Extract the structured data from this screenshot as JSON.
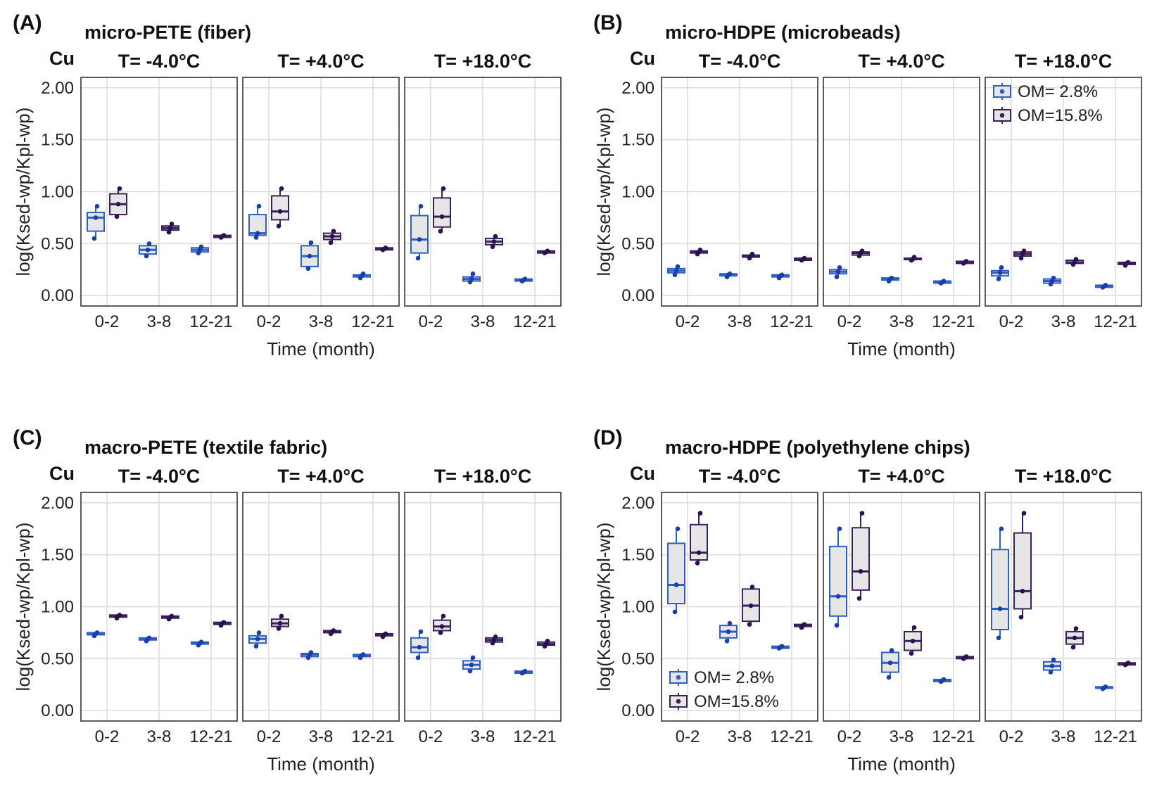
{
  "figure": {
    "y_axis_label": "log(Ksed-wp/Kpl-wp)",
    "x_axis_label": "Time (month)",
    "element": "Cu"
  },
  "legend": {
    "entries": [
      {
        "label": "OM=  2.8%",
        "color": "#2d5fc4"
      },
      {
        "label": "OM=15.8%",
        "color": "#3d1f5c"
      }
    ]
  },
  "colors": {
    "om_low": "#2d5fc4",
    "om_low_point": "#1b3fa8",
    "om_high": "#3d1f5c",
    "om_high_point": "#2a1250",
    "box_fill": "#e6e6e6",
    "grid": "#d9d9d9"
  },
  "chart_data": [
    {
      "id": "A",
      "letter": "(A)",
      "title": "micro-PETE  (fiber)",
      "type": "box",
      "ylim": [
        -0.1,
        2.1
      ],
      "yticks": [
        "0.00",
        "0.50",
        "1.00",
        "1.50",
        "2.00"
      ],
      "categories": [
        "0-2",
        "3-8",
        "12-21"
      ],
      "show_legend": false,
      "facets": [
        {
          "title": "T= -4.0°C",
          "series": [
            {
              "name": "OM= 2.8%",
              "boxes": [
                [
                  0.55,
                  0.62,
                  0.75,
                  0.8,
                  0.86
                ],
                [
                  0.38,
                  0.4,
                  0.44,
                  0.48,
                  0.5
                ],
                [
                  0.41,
                  0.42,
                  0.44,
                  0.46,
                  0.47
                ]
              ]
            },
            {
              "name": "OM=15.8%",
              "boxes": [
                [
                  0.76,
                  0.78,
                  0.88,
                  0.98,
                  1.03
                ],
                [
                  0.61,
                  0.63,
                  0.65,
                  0.67,
                  0.69
                ],
                [
                  0.56,
                  0.56,
                  0.57,
                  0.58,
                  0.58
                ]
              ]
            }
          ]
        },
        {
          "title": "T= +4.0°C",
          "series": [
            {
              "name": "OM= 2.8%",
              "boxes": [
                [
                  0.56,
                  0.58,
                  0.6,
                  0.78,
                  0.86
                ],
                [
                  0.26,
                  0.28,
                  0.38,
                  0.48,
                  0.51
                ],
                [
                  0.17,
                  0.18,
                  0.19,
                  0.2,
                  0.21
                ]
              ]
            },
            {
              "name": "OM=15.8%",
              "boxes": [
                [
                  0.67,
                  0.73,
                  0.81,
                  0.96,
                  1.03
                ],
                [
                  0.51,
                  0.54,
                  0.57,
                  0.6,
                  0.62
                ],
                [
                  0.44,
                  0.44,
                  0.45,
                  0.46,
                  0.46
                ]
              ]
            }
          ]
        },
        {
          "title": "T= +18.0°C",
          "series": [
            {
              "name": "OM= 2.8%",
              "boxes": [
                [
                  0.36,
                  0.41,
                  0.54,
                  0.77,
                  0.86
                ],
                [
                  0.13,
                  0.14,
                  0.16,
                  0.18,
                  0.21
                ],
                [
                  0.14,
                  0.14,
                  0.15,
                  0.16,
                  0.16
                ]
              ]
            },
            {
              "name": "OM=15.8%",
              "boxes": [
                [
                  0.62,
                  0.66,
                  0.76,
                  0.94,
                  1.03
                ],
                [
                  0.47,
                  0.49,
                  0.52,
                  0.55,
                  0.57
                ],
                [
                  0.41,
                  0.41,
                  0.42,
                  0.43,
                  0.43
                ]
              ]
            }
          ]
        }
      ]
    },
    {
      "id": "B",
      "letter": "(B)",
      "title": "micro-HDPE  (microbeads)",
      "type": "box",
      "ylim": [
        -0.1,
        2.1
      ],
      "yticks": [
        "0.00",
        "0.50",
        "1.00",
        "1.50",
        "2.00"
      ],
      "categories": [
        "0-2",
        "3-8",
        "12-21"
      ],
      "show_legend": true,
      "legend_position": "top-right",
      "facets": [
        {
          "title": "T= -4.0°C",
          "series": [
            {
              "name": "OM= 2.8%",
              "boxes": [
                [
                  0.2,
                  0.22,
                  0.24,
                  0.26,
                  0.28
                ],
                [
                  0.18,
                  0.19,
                  0.2,
                  0.21,
                  0.21
                ],
                [
                  0.17,
                  0.18,
                  0.19,
                  0.2,
                  0.2
                ]
              ]
            },
            {
              "name": "OM=15.8%",
              "boxes": [
                [
                  0.4,
                  0.41,
                  0.42,
                  0.43,
                  0.44
                ],
                [
                  0.36,
                  0.37,
                  0.38,
                  0.39,
                  0.4
                ],
                [
                  0.34,
                  0.34,
                  0.35,
                  0.36,
                  0.36
                ]
              ]
            }
          ]
        },
        {
          "title": "T= +4.0°C",
          "series": [
            {
              "name": "OM= 2.8%",
              "boxes": [
                [
                  0.18,
                  0.21,
                  0.23,
                  0.25,
                  0.27
                ],
                [
                  0.14,
                  0.15,
                  0.16,
                  0.17,
                  0.17
                ],
                [
                  0.12,
                  0.12,
                  0.13,
                  0.14,
                  0.14
                ]
              ]
            },
            {
              "name": "OM=15.8%",
              "boxes": [
                [
                  0.38,
                  0.39,
                  0.41,
                  0.42,
                  0.43
                ],
                [
                  0.34,
                  0.35,
                  0.35,
                  0.36,
                  0.37
                ],
                [
                  0.31,
                  0.31,
                  0.32,
                  0.33,
                  0.33
                ]
              ]
            }
          ]
        },
        {
          "title": "T= +18.0°C",
          "series": [
            {
              "name": "OM= 2.8%",
              "boxes": [
                [
                  0.16,
                  0.19,
                  0.22,
                  0.24,
                  0.27
                ],
                [
                  0.11,
                  0.12,
                  0.14,
                  0.16,
                  0.17
                ],
                [
                  0.08,
                  0.08,
                  0.09,
                  0.1,
                  0.1
                ]
              ]
            },
            {
              "name": "OM=15.8%",
              "boxes": [
                [
                  0.36,
                  0.38,
                  0.4,
                  0.42,
                  0.43
                ],
                [
                  0.3,
                  0.31,
                  0.32,
                  0.34,
                  0.35
                ],
                [
                  0.29,
                  0.3,
                  0.31,
                  0.32,
                  0.32
                ]
              ]
            }
          ]
        }
      ]
    },
    {
      "id": "C",
      "letter": "(C)",
      "title": "macro-PETE  (textile fabric)",
      "type": "box",
      "ylim": [
        -0.1,
        2.1
      ],
      "yticks": [
        "0.00",
        "0.50",
        "1.00",
        "1.50",
        "2.00"
      ],
      "categories": [
        "0-2",
        "3-8",
        "12-21"
      ],
      "show_legend": false,
      "facets": [
        {
          "title": "T= -4.0°C",
          "series": [
            {
              "name": "OM= 2.8%",
              "boxes": [
                [
                  0.72,
                  0.73,
                  0.74,
                  0.75,
                  0.75
                ],
                [
                  0.67,
                  0.68,
                  0.69,
                  0.7,
                  0.7
                ],
                [
                  0.63,
                  0.64,
                  0.65,
                  0.66,
                  0.66
                ]
              ]
            },
            {
              "name": "OM=15.8%",
              "boxes": [
                [
                  0.89,
                  0.9,
                  0.91,
                  0.92,
                  0.92
                ],
                [
                  0.88,
                  0.89,
                  0.9,
                  0.91,
                  0.91
                ],
                [
                  0.82,
                  0.83,
                  0.84,
                  0.85,
                  0.85
                ]
              ]
            }
          ]
        },
        {
          "title": "T= +4.0°C",
          "series": [
            {
              "name": "OM= 2.8%",
              "boxes": [
                [
                  0.62,
                  0.65,
                  0.69,
                  0.72,
                  0.75
                ],
                [
                  0.51,
                  0.52,
                  0.54,
                  0.55,
                  0.56
                ],
                [
                  0.51,
                  0.52,
                  0.53,
                  0.54,
                  0.54
                ]
              ]
            },
            {
              "name": "OM=15.8%",
              "boxes": [
                [
                  0.79,
                  0.81,
                  0.84,
                  0.88,
                  0.91
                ],
                [
                  0.74,
                  0.75,
                  0.76,
                  0.77,
                  0.77
                ],
                [
                  0.71,
                  0.72,
                  0.73,
                  0.74,
                  0.74
                ]
              ]
            }
          ]
        },
        {
          "title": "T= +18.0°C",
          "series": [
            {
              "name": "OM= 2.8%",
              "boxes": [
                [
                  0.51,
                  0.56,
                  0.61,
                  0.7,
                  0.76
                ],
                [
                  0.38,
                  0.4,
                  0.44,
                  0.48,
                  0.51
                ],
                [
                  0.36,
                  0.36,
                  0.37,
                  0.38,
                  0.38
                ]
              ]
            },
            {
              "name": "OM=15.8%",
              "boxes": [
                [
                  0.75,
                  0.77,
                  0.81,
                  0.87,
                  0.91
                ],
                [
                  0.65,
                  0.66,
                  0.68,
                  0.7,
                  0.71
                ],
                [
                  0.62,
                  0.63,
                  0.64,
                  0.66,
                  0.67
                ]
              ]
            }
          ]
        }
      ]
    },
    {
      "id": "D",
      "letter": "(D)",
      "title": "macro-HDPE  (polyethylene chips)",
      "type": "box",
      "ylim": [
        -0.1,
        2.1
      ],
      "yticks": [
        "0.00",
        "0.50",
        "1.00",
        "1.50",
        "2.00"
      ],
      "categories": [
        "0-2",
        "3-8",
        "12-21"
      ],
      "show_legend": true,
      "legend_position": "bottom-left",
      "facets": [
        {
          "title": "T= -4.0°C",
          "series": [
            {
              "name": "OM= 2.8%",
              "boxes": [
                [
                  0.95,
                  1.03,
                  1.21,
                  1.61,
                  1.75
                ],
                [
                  0.67,
                  0.7,
                  0.76,
                  0.82,
                  0.84
                ],
                [
                  0.6,
                  0.6,
                  0.61,
                  0.62,
                  0.62
                ]
              ]
            },
            {
              "name": "OM=15.8%",
              "boxes": [
                [
                  1.42,
                  1.45,
                  1.52,
                  1.79,
                  1.9
                ],
                [
                  0.83,
                  0.86,
                  1.01,
                  1.17,
                  1.19
                ],
                [
                  0.8,
                  0.81,
                  0.82,
                  0.83,
                  0.83
                ]
              ]
            }
          ]
        },
        {
          "title": "T= +4.0°C",
          "series": [
            {
              "name": "OM= 2.8%",
              "boxes": [
                [
                  0.82,
                  0.91,
                  1.1,
                  1.58,
                  1.75
                ],
                [
                  0.32,
                  0.37,
                  0.46,
                  0.56,
                  0.58
                ],
                [
                  0.28,
                  0.28,
                  0.29,
                  0.3,
                  0.3
                ]
              ]
            },
            {
              "name": "OM=15.8%",
              "boxes": [
                [
                  1.08,
                  1.16,
                  1.34,
                  1.76,
                  1.9
                ],
                [
                  0.55,
                  0.58,
                  0.67,
                  0.76,
                  0.8
                ],
                [
                  0.5,
                  0.5,
                  0.51,
                  0.52,
                  0.52
                ]
              ]
            }
          ]
        },
        {
          "title": "T= +18.0°C",
          "series": [
            {
              "name": "OM= 2.8%",
              "boxes": [
                [
                  0.7,
                  0.78,
                  0.98,
                  1.55,
                  1.75
                ],
                [
                  0.37,
                  0.39,
                  0.43,
                  0.47,
                  0.49
                ],
                [
                  0.21,
                  0.22,
                  0.22,
                  0.23,
                  0.23
                ]
              ]
            },
            {
              "name": "OM=15.8%",
              "boxes": [
                [
                  0.9,
                  0.98,
                  1.15,
                  1.71,
                  1.9
                ],
                [
                  0.61,
                  0.64,
                  0.7,
                  0.76,
                  0.79
                ],
                [
                  0.44,
                  0.44,
                  0.45,
                  0.46,
                  0.46
                ]
              ]
            }
          ]
        }
      ]
    }
  ]
}
